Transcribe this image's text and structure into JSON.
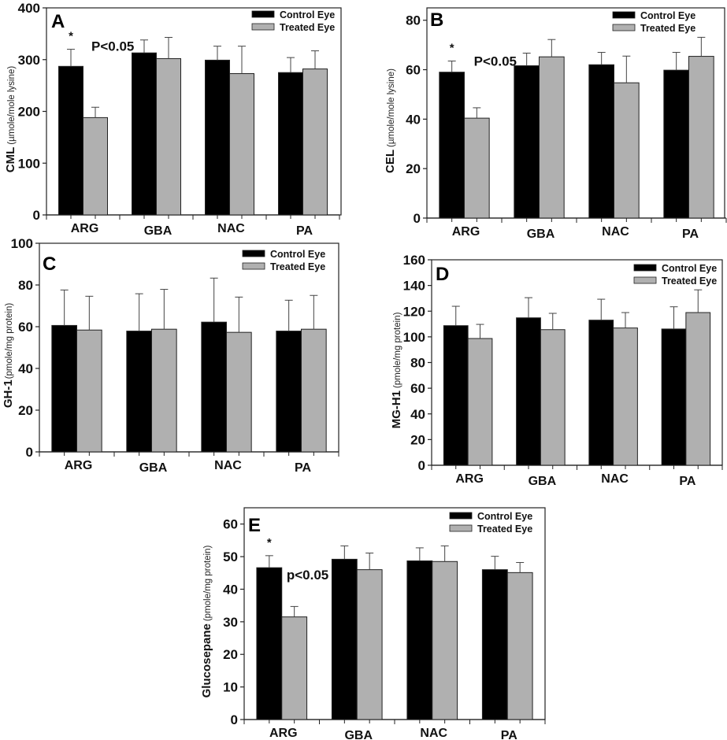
{
  "figure": {
    "legend": {
      "control": "Control Eye",
      "treated": "Treated Eye"
    },
    "colors": {
      "control": "#000000",
      "treated": "#b0b0b0",
      "error_bar": "#444444"
    }
  },
  "chart_data": [
    {
      "type": "bar",
      "panel": "A",
      "categories": [
        "ARG",
        "GBA",
        "NAC",
        "PA"
      ],
      "ylabel": "CML",
      "ylabel_unit": "(µmole/mole lysine)",
      "ylim": [
        0,
        400
      ],
      "yticks": [
        0,
        100,
        200,
        300,
        400
      ],
      "series": [
        {
          "name": "Control Eye",
          "values": [
            287,
            313,
            299,
            275
          ],
          "error_upper": [
            320,
            338,
            326,
            304
          ]
        },
        {
          "name": "Treated Eye",
          "values": [
            188,
            302,
            273,
            282
          ],
          "error_upper": [
            208,
            343,
            326,
            317
          ]
        }
      ],
      "annotations": [
        {
          "text": "*",
          "category": "ARG"
        },
        {
          "text": "P<0.05",
          "category": "ARG"
        }
      ],
      "legend_position": "top-right",
      "grid": false
    },
    {
      "type": "bar",
      "panel": "B",
      "categories": [
        "ARG",
        "GBA",
        "NAC",
        "PA"
      ],
      "ylabel": "CEL",
      "ylabel_unit": "(µmole/mole lysine)",
      "ylim": [
        0,
        85
      ],
      "yticks": [
        0,
        20,
        40,
        60,
        80
      ],
      "series": [
        {
          "name": "Control Eye",
          "values": [
            59,
            61.6,
            62,
            59.8
          ],
          "error_upper": [
            63.5,
            66.7,
            67,
            67
          ]
        },
        {
          "name": "Treated Eye",
          "values": [
            40.4,
            65.2,
            54.7,
            65.4
          ],
          "error_upper": [
            44.6,
            72.2,
            65.5,
            73.1
          ]
        }
      ],
      "annotations": [
        {
          "text": "*",
          "category": "ARG"
        },
        {
          "text": "P<0.05",
          "category": "ARG"
        }
      ],
      "legend_position": "top-right",
      "grid": false
    },
    {
      "type": "bar",
      "panel": "C",
      "categories": [
        "ARG",
        "GBA",
        "NAC",
        "PA"
      ],
      "ylabel": "GH-1",
      "ylabel_unit": "(pmole/mg protein)",
      "ylim": [
        0,
        100
      ],
      "yticks": [
        0,
        20,
        40,
        60,
        80,
        100
      ],
      "series": [
        {
          "name": "Control Eye",
          "values": [
            60.6,
            57.9,
            62.2,
            57.9
          ],
          "error_upper": [
            77.6,
            75.8,
            83.3,
            72.7
          ]
        },
        {
          "name": "Treated Eye",
          "values": [
            58.4,
            58.8,
            57.3,
            58.8
          ],
          "error_upper": [
            74.6,
            77.9,
            74.2,
            75
          ]
        }
      ],
      "annotations": [],
      "legend_position": "top-right",
      "grid": false
    },
    {
      "type": "bar",
      "panel": "D",
      "categories": [
        "ARG",
        "GBA",
        "NAC",
        "PA"
      ],
      "ylabel": "MG-H1",
      "ylabel_unit": "(pmole/mg protein)",
      "ylim": [
        0,
        160
      ],
      "yticks": [
        0,
        20,
        40,
        60,
        80,
        100,
        120,
        140,
        160
      ],
      "series": [
        {
          "name": "Control Eye",
          "values": [
            108.7,
            114.8,
            113,
            106.1
          ],
          "error_upper": [
            123.8,
            130.5,
            129.3,
            123.4
          ]
        },
        {
          "name": "Treated Eye",
          "values": [
            98.7,
            105.6,
            106.9,
            118.9
          ],
          "error_upper": [
            109.7,
            118.3,
            118.9,
            136.6
          ]
        }
      ],
      "annotations": [],
      "legend_position": "top-right",
      "grid": false
    },
    {
      "type": "bar",
      "panel": "E",
      "categories": [
        "ARG",
        "GBA",
        "NAC",
        "PA"
      ],
      "ylabel": "Glucosepane",
      "ylabel_unit": "(pmole/mg protein)",
      "ylim": [
        0,
        65
      ],
      "yticks": [
        0,
        10,
        20,
        30,
        40,
        50,
        60
      ],
      "series": [
        {
          "name": "Control Eye",
          "values": [
            46.6,
            49.2,
            48.7,
            46.0
          ],
          "error_upper": [
            50.3,
            53.3,
            52.7,
            50.1
          ]
        },
        {
          "name": "Treated Eye",
          "values": [
            31.5,
            46.0,
            48.5,
            45.1
          ],
          "error_upper": [
            34.7,
            51.1,
            53.3,
            48.2
          ]
        }
      ],
      "annotations": [
        {
          "text": "*",
          "category": "ARG"
        },
        {
          "text": "p<0.05",
          "category": "ARG"
        }
      ],
      "legend_position": "top-right",
      "grid": false
    }
  ]
}
